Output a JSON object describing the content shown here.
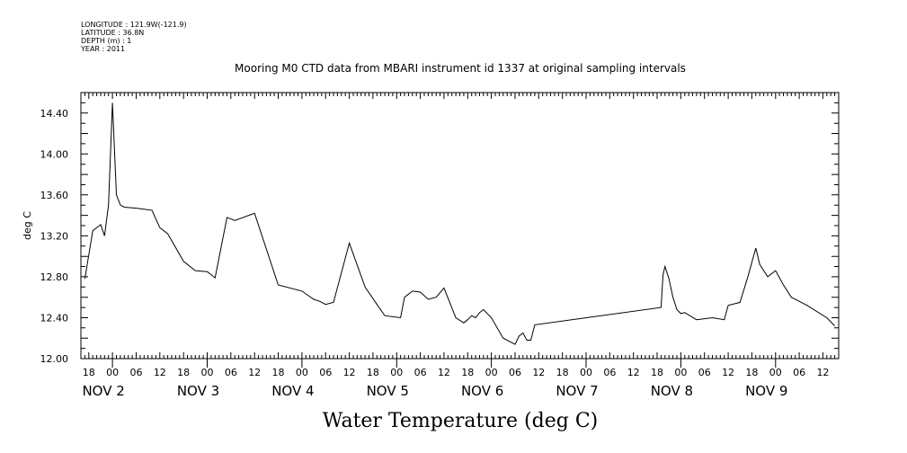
{
  "header": {
    "longitude": "LONGITUDE : 121.9W(-121.9)",
    "latitude": "LATITUDE : 36.8N",
    "depth": "DEPTH (m) : 1",
    "year": "YEAR : 2011",
    "title": "Mooring M0 CTD data from MBARI instrument id 1337 at original sampling intervals"
  },
  "chart_data": {
    "type": "line",
    "title": "Mooring M0 CTD data from MBARI instrument id 1337 at original sampling intervals",
    "xlabel": "Water Temperature (deg C)",
    "ylabel": "deg C",
    "xlim": [
      "2011-11-01T16:00",
      "2011-11-09T16:00"
    ],
    "ylim": [
      12.0,
      14.6
    ],
    "y_ticks": [
      "12.00",
      "12.40",
      "12.80",
      "13.20",
      "13.60",
      "14.00",
      "14.40"
    ],
    "x_tick_labels": [
      "18",
      "00",
      "06",
      "12",
      "18",
      "00",
      "06",
      "12",
      "18",
      "00",
      "06",
      "12",
      "18",
      "00",
      "06",
      "12",
      "18",
      "00",
      "06",
      "12",
      "18",
      "00",
      "06",
      "12",
      "18",
      "00",
      "06",
      "12",
      "18",
      "00",
      "06",
      "12"
    ],
    "day_labels": [
      "NOV  2",
      "NOV  3",
      "NOV  4",
      "NOV  5",
      "NOV  6",
      "NOV  7",
      "NOV  8",
      "NOV  9"
    ],
    "series": [
      {
        "x": [
          "2011-11-01T17:00",
          "2011-11-01T19:00",
          "2011-11-01T21:00",
          "2011-11-01T22:00",
          "2011-11-01T23:00",
          "2011-11-02T00:00",
          "2011-11-02T01:00",
          "2011-11-02T02:00",
          "2011-11-02T03:00",
          "2011-11-02T06:00",
          "2011-11-02T10:00",
          "2011-11-02T12:00",
          "2011-11-02T14:00",
          "2011-11-02T18:00",
          "2011-11-02T21:00",
          "2011-11-03T00:00",
          "2011-11-03T02:00",
          "2011-11-03T05:00",
          "2011-11-03T07:00",
          "2011-11-03T12:00",
          "2011-11-03T18:00",
          "2011-11-04T00:00",
          "2011-11-04T03:00",
          "2011-11-04T04:30",
          "2011-11-04T06:00",
          "2011-11-04T08:00",
          "2011-11-04T12:00",
          "2011-11-04T16:00",
          "2011-11-04T19:00",
          "2011-11-04T21:00",
          "2011-11-05T01:00",
          "2011-11-05T02:00",
          "2011-11-05T04:00",
          "2011-11-05T06:00",
          "2011-11-05T08:00",
          "2011-11-05T10:00",
          "2011-11-05T12:00",
          "2011-11-05T15:00",
          "2011-11-05T17:00",
          "2011-11-05T18:00",
          "2011-11-05T19:00",
          "2011-11-05T20:00",
          "2011-11-05T21:00",
          "2011-11-05T22:00",
          "2011-11-06T00:00",
          "2011-11-06T03:00",
          "2011-11-06T06:00",
          "2011-11-06T07:00",
          "2011-11-06T08:00",
          "2011-11-06T09:00",
          "2011-11-06T10:00",
          "2011-11-06T11:00",
          "2011-11-07T19:00",
          "2011-11-07T19:30",
          "2011-11-07T20:00",
          "2011-11-07T21:00",
          "2011-11-07T22:00",
          "2011-11-07T23:00",
          "2011-11-08T00:00",
          "2011-11-08T01:00",
          "2011-11-08T04:00",
          "2011-11-08T08:00",
          "2011-11-08T11:00",
          "2011-11-08T12:00",
          "2011-11-08T15:00",
          "2011-11-08T17:00",
          "2011-11-08T19:00",
          "2011-11-08T20:00",
          "2011-11-08T22:00",
          "2011-11-09T00:00",
          "2011-11-09T02:00",
          "2011-11-09T04:00",
          "2011-11-09T08:00",
          "2011-11-09T13:00",
          "2011-11-09T15:00"
        ],
        "y": [
          12.78,
          13.25,
          13.31,
          13.2,
          13.5,
          14.5,
          13.6,
          13.5,
          13.48,
          13.47,
          13.45,
          13.28,
          13.22,
          12.95,
          12.86,
          12.85,
          12.79,
          13.38,
          13.35,
          13.42,
          12.72,
          12.66,
          12.58,
          12.56,
          12.53,
          12.55,
          13.13,
          12.7,
          12.53,
          12.42,
          12.4,
          12.6,
          12.66,
          12.65,
          12.58,
          12.6,
          12.69,
          12.4,
          12.35,
          12.38,
          12.42,
          12.4,
          12.45,
          12.48,
          12.4,
          12.2,
          12.14,
          12.22,
          12.25,
          12.18,
          12.18,
          12.33,
          12.5,
          12.82,
          12.9,
          12.78,
          12.6,
          12.48,
          12.44,
          12.45,
          12.38,
          12.4,
          12.38,
          12.52,
          12.55,
          12.8,
          13.08,
          12.92,
          12.8,
          12.86,
          12.72,
          12.6,
          12.52,
          12.4,
          12.32
        ]
      }
    ]
  }
}
